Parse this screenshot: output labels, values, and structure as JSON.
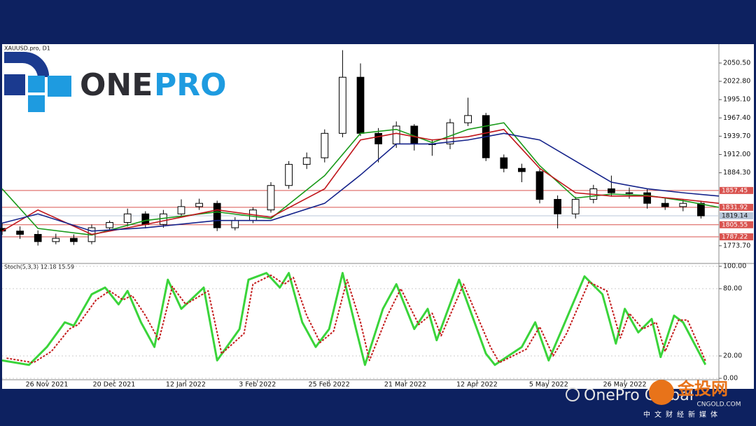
{
  "branding": {
    "logo_parts": [
      "ONE",
      "PRO"
    ],
    "watermark": "OnePro Global",
    "site_logo": "金投网",
    "site": "CNGOLD.COM",
    "site_cn": "中文财经新媒体"
  },
  "chart_data": [
    {
      "type": "candlestick",
      "title": "XAUUSD.pro, D1",
      "x": [
        0,
        4,
        8,
        12,
        16,
        20,
        24,
        28,
        32,
        36,
        40,
        44,
        48,
        52,
        56,
        60,
        64,
        68,
        72,
        76,
        80,
        84,
        88,
        92,
        96,
        100,
        104,
        108,
        112,
        116,
        120,
        124,
        128,
        132,
        136,
        140,
        144,
        148,
        152,
        156
      ],
      "open": [
        1800,
        1796,
        1791,
        1780,
        1785,
        1780,
        1801,
        1809,
        1822,
        1806,
        1822,
        1833,
        1838,
        1801,
        1812,
        1828,
        1865,
        1897,
        1907,
        1944,
        2029,
        1944,
        1928,
        1955,
        1928,
        1928,
        1960,
        1971,
        1907,
        1891,
        1886,
        1844,
        1822,
        1844,
        1860,
        1854,
        1854,
        1838,
        1833,
        1838
      ],
      "high": [
        1808,
        1803,
        1797,
        1792,
        1791,
        1806,
        1812,
        1830,
        1826,
        1828,
        1844,
        1845,
        1842,
        1817,
        1832,
        1870,
        1902,
        1915,
        1950,
        2070,
        2050,
        1952,
        1962,
        1958,
        1935,
        1966,
        1998,
        1975,
        1912,
        1898,
        1890,
        1850,
        1848,
        1866,
        1880,
        1862,
        1860,
        1846,
        1844,
        1842
      ],
      "low": [
        1790,
        1784,
        1774,
        1776,
        1775,
        1776,
        1797,
        1803,
        1800,
        1801,
        1818,
        1828,
        1796,
        1797,
        1808,
        1824,
        1860,
        1890,
        1900,
        1938,
        1940,
        1900,
        1922,
        1918,
        1910,
        1920,
        1955,
        1902,
        1885,
        1870,
        1838,
        1800,
        1815,
        1838,
        1848,
        1845,
        1830,
        1828,
        1826,
        1815
      ],
      "close": [
        1796,
        1791,
        1780,
        1785,
        1780,
        1801,
        1809,
        1822,
        1806,
        1822,
        1833,
        1838,
        1801,
        1812,
        1828,
        1865,
        1897,
        1907,
        1944,
        2029,
        1944,
        1928,
        1955,
        1928,
        1928,
        1960,
        1971,
        1907,
        1891,
        1886,
        1844,
        1822,
        1844,
        1860,
        1854,
        1854,
        1838,
        1833,
        1838,
        1819
      ],
      "up_color": "#ffffff",
      "down_color": "#000000",
      "overlays": [
        {
          "color": "#1a9a1a",
          "x": [
            0,
            8,
            20,
            32,
            48,
            60,
            72,
            80,
            88,
            96,
            104,
            112,
            120,
            128,
            136,
            144,
            152,
            160
          ],
          "values": [
            1860,
            1800,
            1790,
            1812,
            1825,
            1815,
            1880,
            1944,
            1950,
            1930,
            1950,
            1960,
            1895,
            1846,
            1852,
            1850,
            1842,
            1832
          ]
        },
        {
          "color": "#c0151b",
          "x": [
            0,
            8,
            20,
            32,
            48,
            60,
            72,
            80,
            88,
            96,
            104,
            112,
            120,
            128,
            136,
            144,
            152,
            160
          ],
          "values": [
            1796,
            1828,
            1791,
            1806,
            1828,
            1817,
            1860,
            1934,
            1944,
            1934,
            1939,
            1950,
            1891,
            1854,
            1849,
            1849,
            1844,
            1838
          ]
        },
        {
          "color": "#14228a",
          "x": [
            0,
            8,
            20,
            32,
            48,
            60,
            72,
            80,
            88,
            96,
            104,
            112,
            120,
            128,
            136,
            144,
            152,
            160
          ],
          "values": [
            1808,
            1822,
            1796,
            1801,
            1812,
            1812,
            1838,
            1881,
            1928,
            1928,
            1934,
            1944,
            1934,
            1902,
            1870,
            1860,
            1854,
            1849
          ]
        }
      ],
      "levels": [
        {
          "value": 1857.45,
          "color": "#d9534f"
        },
        {
          "value": 1831.92,
          "color": "#d9534f"
        },
        {
          "value": 1805.55,
          "color": "#d9534f"
        },
        {
          "value": 1787.22,
          "color": "#d9534f"
        }
      ],
      "last_price": {
        "value": 1819.14,
        "color": "#b9c6d8"
      },
      "xlim": [
        0,
        160
      ],
      "ylim": [
        1748,
        2077
      ],
      "yticks": [
        {
          "value": 2050.5,
          "label": "2050.50"
        },
        {
          "value": 2022.8,
          "label": "2022.80"
        },
        {
          "value": 1995.1,
          "label": "1995.10"
        },
        {
          "value": 1967.4,
          "label": "1967.40"
        },
        {
          "value": 1939.7,
          "label": "1939.70"
        },
        {
          "value": 1912,
          "label": "1912.00"
        },
        {
          "value": 1884.3,
          "label": "1884.30"
        },
        {
          "value": 1773.7,
          "label": "1773.70"
        }
      ]
    },
    {
      "type": "line",
      "title": "Stoch(5,3,3) 12.18 15.59",
      "series": [
        {
          "color": "#3ad43a",
          "x": [
            0,
            6,
            10,
            14,
            16,
            20,
            23,
            26,
            28,
            31,
            34,
            37,
            40,
            45,
            48,
            53,
            55,
            59,
            62,
            64,
            67,
            70,
            73,
            76,
            79,
            81,
            85,
            88,
            92,
            95,
            97,
            102,
            108,
            110,
            116,
            119,
            122,
            125,
            130,
            134,
            137,
            139,
            142,
            145,
            147,
            150,
            152,
            157
          ],
          "values": [
            16,
            12,
            28,
            50,
            47,
            75,
            81,
            66,
            78,
            50,
            28,
            88,
            62,
            81,
            16,
            44,
            88,
            94,
            81,
            94,
            50,
            28,
            44,
            94,
            44,
            12,
            62,
            84,
            44,
            62,
            34,
            88,
            22,
            12,
            28,
            50,
            16,
            44,
            91,
            75,
            31,
            62,
            41,
            53,
            19,
            56,
            50,
            12.18
          ]
        },
        {
          "color": "#c41e1e",
          "dash": true,
          "x": [
            1,
            7,
            11,
            15,
            17,
            21,
            24,
            27,
            29,
            32,
            35,
            38,
            41,
            46,
            49,
            54,
            56,
            60,
            63,
            65,
            68,
            71,
            74,
            77,
            80,
            82,
            86,
            89,
            93,
            96,
            98,
            103,
            109,
            111,
            117,
            120,
            123,
            126,
            131,
            135,
            138,
            140,
            143,
            146,
            148,
            151,
            153,
            157
          ],
          "values": [
            18,
            14,
            24,
            44,
            48,
            70,
            78,
            70,
            74,
            56,
            34,
            82,
            66,
            78,
            22,
            40,
            84,
            92,
            84,
            90,
            56,
            32,
            42,
            88,
            50,
            16,
            56,
            80,
            48,
            58,
            38,
            84,
            28,
            14,
            26,
            46,
            20,
            40,
            86,
            78,
            36,
            58,
            44,
            50,
            24,
            52,
            52,
            15.59
          ]
        }
      ],
      "xlim": [
        0,
        160
      ],
      "ylim": [
        0,
        100
      ],
      "yticks": [
        {
          "value": 100,
          "label": "100.00"
        },
        {
          "value": 80,
          "label": "80.00"
        },
        {
          "value": 20,
          "label": "20.00"
        },
        {
          "value": 0,
          "label": "0.00"
        }
      ],
      "xticks": [
        {
          "value": 10,
          "label": "26 Nov 2021"
        },
        {
          "value": 25,
          "label": "20 Dec 2021"
        },
        {
          "value": 41,
          "label": "12 Jan 2022"
        },
        {
          "value": 57,
          "label": "3 Feb 2022"
        },
        {
          "value": 73,
          "label": "25 Feb 2022"
        },
        {
          "value": 90,
          "label": "21 Mar 2022"
        },
        {
          "value": 106,
          "label": "12 Apr 2022"
        },
        {
          "value": 122,
          "label": "5 May 2022"
        },
        {
          "value": 139,
          "label": "26 May 2022"
        }
      ]
    }
  ]
}
